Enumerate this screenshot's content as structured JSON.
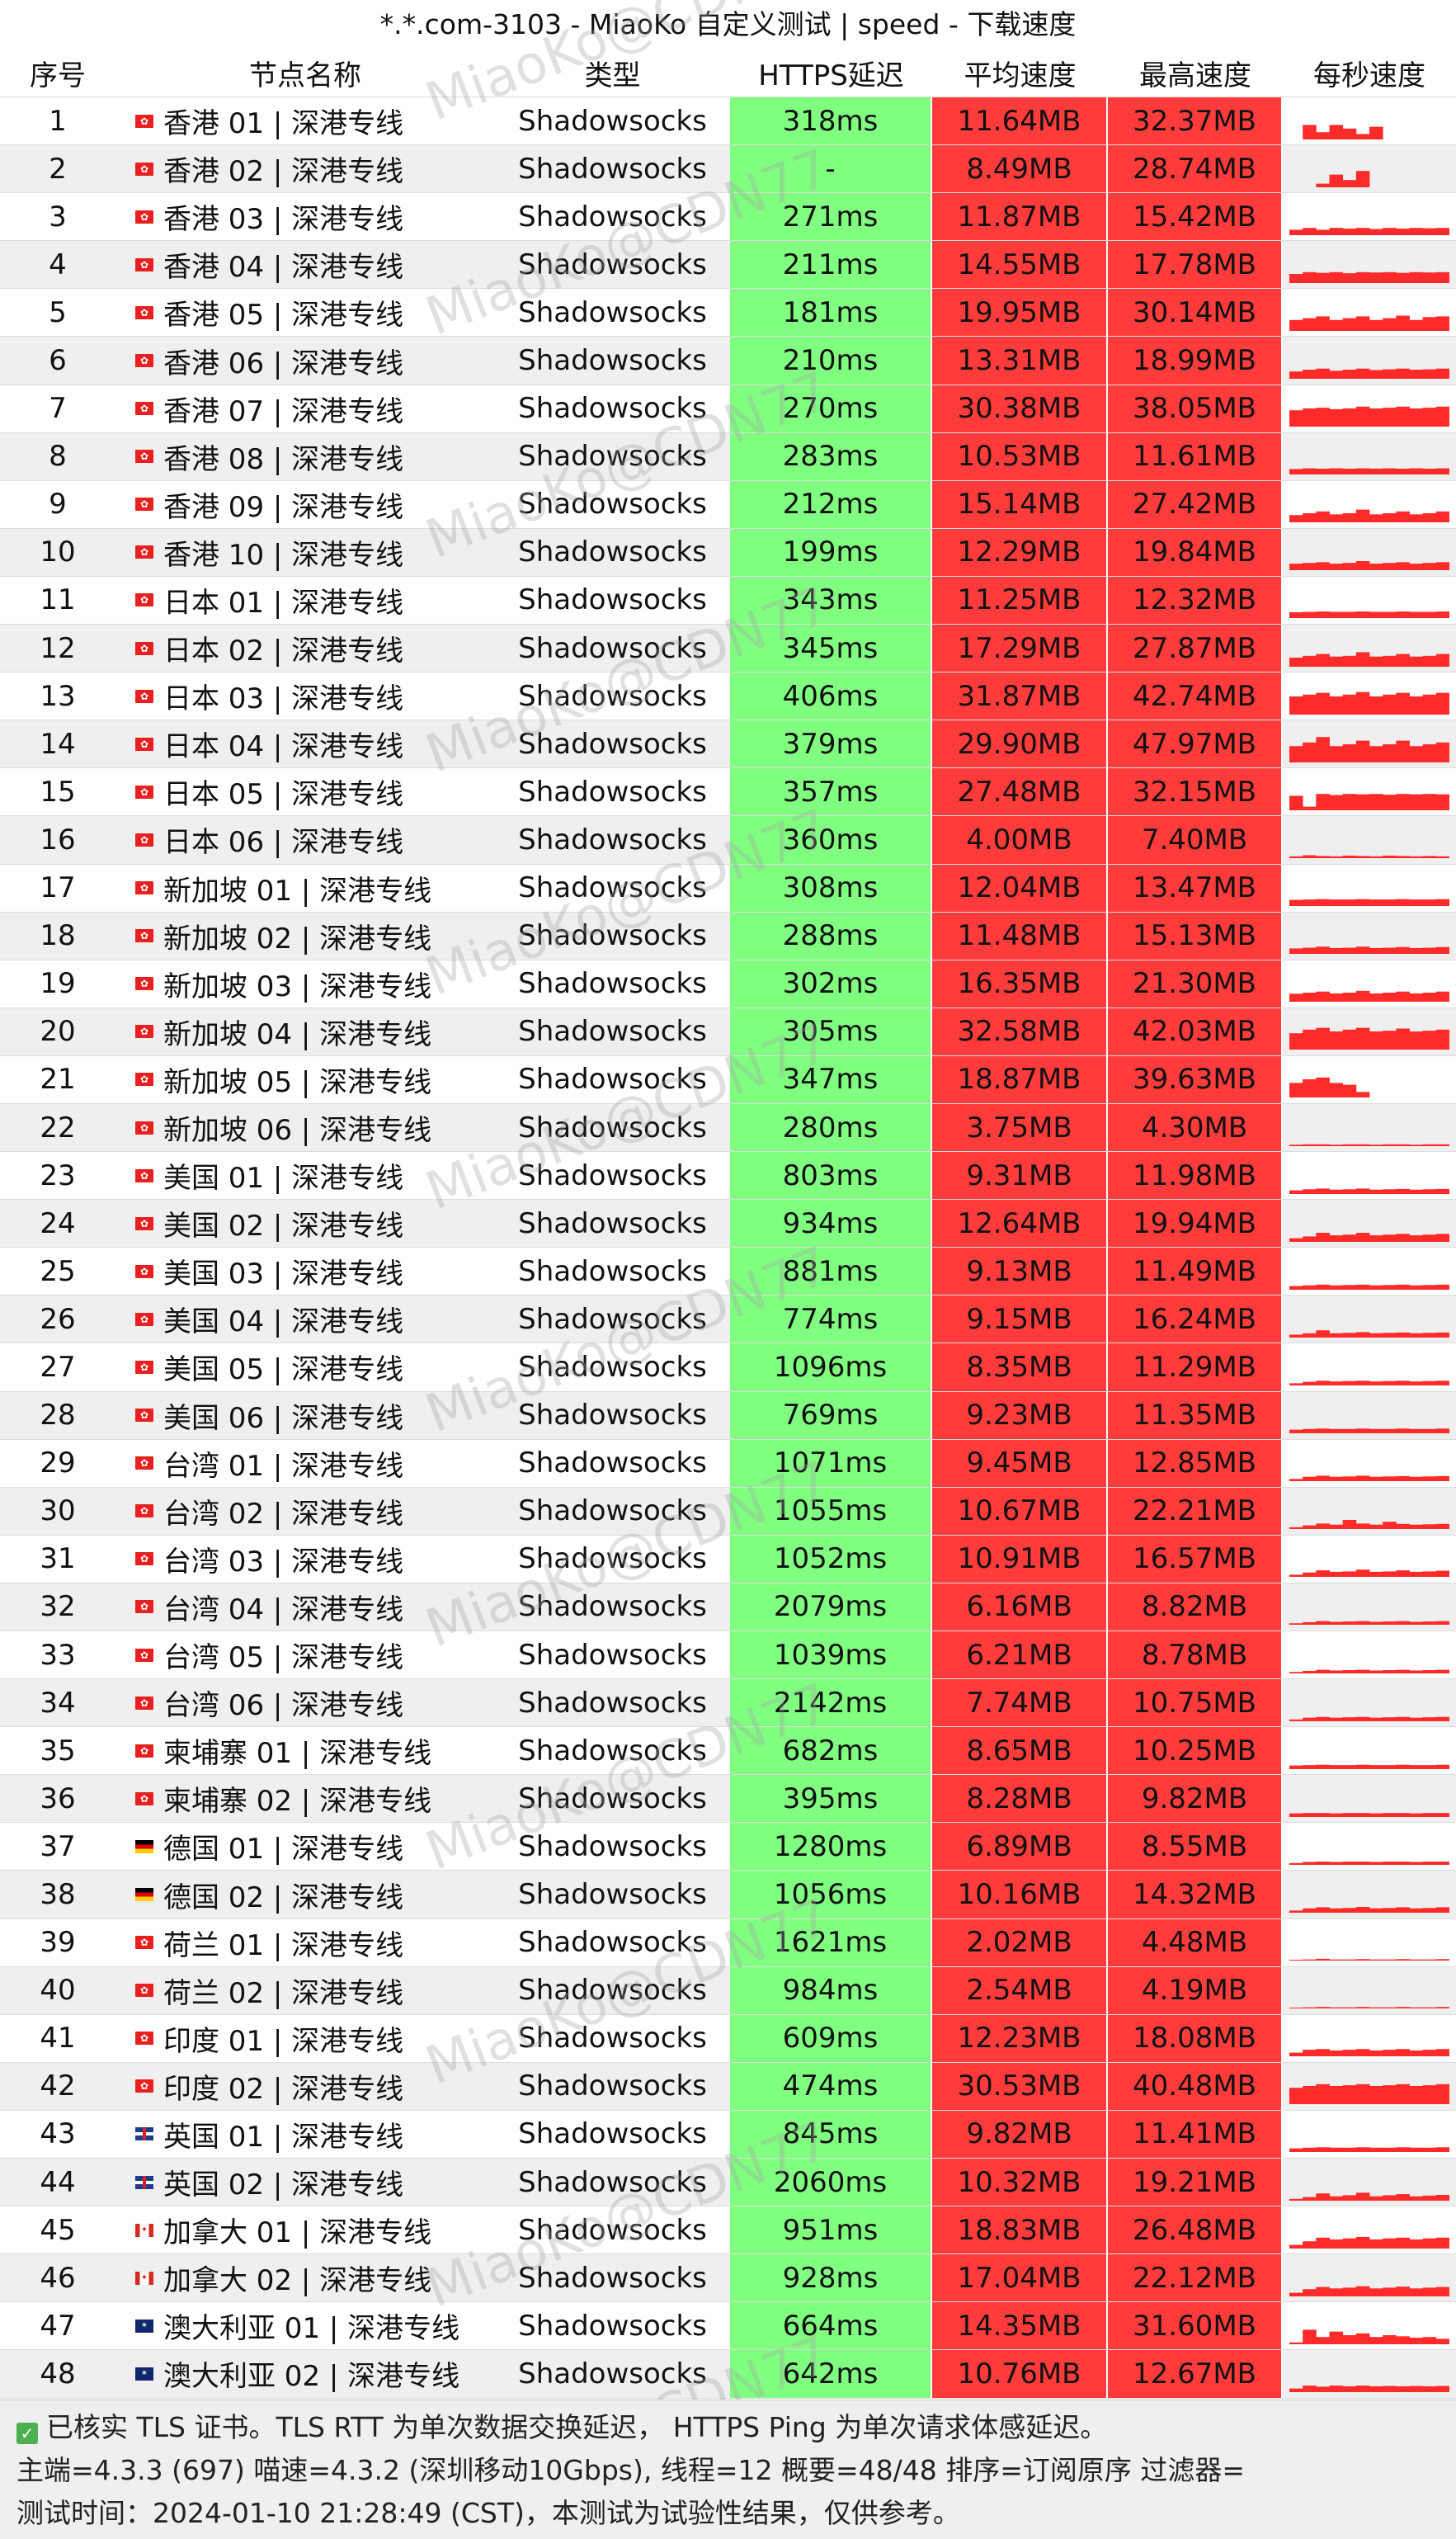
{
  "title": "*.*.com-3103 - MiaoKo 自定义测试 | speed - 下载速度",
  "columns": [
    "序号",
    "节点名称",
    "类型",
    "HTTPS延迟",
    "平均速度",
    "最高速度",
    "每秒速度"
  ],
  "watermark": "MiaoKo@CDN77",
  "colors": {
    "latency_bg": "#80ff80",
    "speed_bg": "#ff3b3b",
    "sparkline": "#ff2a2a",
    "alt_row": "#efefef"
  },
  "rows": [
    {
      "idx": "1",
      "flag": "hk-flag",
      "name": "香港 01 | 深港专线",
      "type": "Shadowsocks",
      "latency": "318ms",
      "avg": "11.64MB",
      "max": "32.37MB",
      "spark": [
        0.0,
        0.4,
        0.2,
        0.4,
        0.3,
        0.15,
        0.35,
        0,
        0,
        0,
        0,
        0
      ]
    },
    {
      "idx": "2",
      "flag": "hk-flag",
      "name": "香港 02 | 深港专线",
      "type": "Shadowsocks",
      "latency": "-",
      "avg": "8.49MB",
      "max": "28.74MB",
      "spark": [
        0,
        0,
        0.1,
        0.35,
        0.2,
        0.45,
        0,
        0,
        0,
        0,
        0,
        0
      ]
    },
    {
      "idx": "3",
      "flag": "hk-flag",
      "name": "香港 03 | 深港专线",
      "type": "Shadowsocks",
      "latency": "271ms",
      "avg": "11.87MB",
      "max": "15.42MB",
      "spark": [
        0.15,
        0.2,
        0.15,
        0.2,
        0.18,
        0.2,
        0.17,
        0.2,
        0.18,
        0.2,
        0.19,
        0.2
      ]
    },
    {
      "idx": "4",
      "flag": "hk-flag",
      "name": "香港 04 | 深港专线",
      "type": "Shadowsocks",
      "latency": "211ms",
      "avg": "14.55MB",
      "max": "17.78MB",
      "spark": [
        0.25,
        0.3,
        0.28,
        0.3,
        0.27,
        0.3,
        0.29,
        0.3,
        0.28,
        0.3,
        0.29,
        0.3
      ]
    },
    {
      "idx": "5",
      "flag": "hk-flag",
      "name": "香港 05 | 深港专线",
      "type": "Shadowsocks",
      "latency": "181ms",
      "avg": "19.95MB",
      "max": "30.14MB",
      "spark": [
        0.3,
        0.35,
        0.4,
        0.3,
        0.35,
        0.4,
        0.3,
        0.35,
        0.42,
        0.3,
        0.38,
        0.4
      ]
    },
    {
      "idx": "6",
      "flag": "hk-flag",
      "name": "香港 06 | 深港专线",
      "type": "Shadowsocks",
      "latency": "210ms",
      "avg": "13.31MB",
      "max": "18.99MB",
      "spark": [
        0.2,
        0.25,
        0.28,
        0.22,
        0.25,
        0.28,
        0.24,
        0.26,
        0.28,
        0.25,
        0.26,
        0.28
      ]
    },
    {
      "idx": "7",
      "flag": "hk-flag",
      "name": "香港 07 | 深港专线",
      "type": "Shadowsocks",
      "latency": "270ms",
      "avg": "30.38MB",
      "max": "38.05MB",
      "spark": [
        0.45,
        0.5,
        0.52,
        0.48,
        0.5,
        0.55,
        0.5,
        0.52,
        0.55,
        0.5,
        0.52,
        0.55
      ]
    },
    {
      "idx": "8",
      "flag": "hk-flag",
      "name": "香港 08 | 深港专线",
      "type": "Shadowsocks",
      "latency": "283ms",
      "avg": "10.53MB",
      "max": "11.61MB",
      "spark": [
        0.15,
        0.17,
        0.16,
        0.17,
        0.16,
        0.17,
        0.16,
        0.17,
        0.16,
        0.17,
        0.16,
        0.17
      ]
    },
    {
      "idx": "9",
      "flag": "hk-flag",
      "name": "香港 09 | 深港专线",
      "type": "Shadowsocks",
      "latency": "212ms",
      "avg": "15.14MB",
      "max": "27.42MB",
      "spark": [
        0.2,
        0.25,
        0.3,
        0.22,
        0.25,
        0.35,
        0.22,
        0.25,
        0.3,
        0.22,
        0.25,
        0.3
      ]
    },
    {
      "idx": "10",
      "flag": "hk-flag",
      "name": "香港 10 | 深港专线",
      "type": "Shadowsocks",
      "latency": "199ms",
      "avg": "12.29MB",
      "max": "19.84MB",
      "spark": [
        0.18,
        0.2,
        0.22,
        0.18,
        0.2,
        0.25,
        0.18,
        0.2,
        0.22,
        0.18,
        0.2,
        0.22
      ]
    },
    {
      "idx": "11",
      "flag": "hk-flag",
      "name": "日本 01 | 深港专线",
      "type": "Shadowsocks",
      "latency": "343ms",
      "avg": "11.25MB",
      "max": "12.32MB",
      "spark": [
        0.16,
        0.17,
        0.18,
        0.17,
        0.17,
        0.18,
        0.17,
        0.17,
        0.18,
        0.17,
        0.17,
        0.18
      ]
    },
    {
      "idx": "12",
      "flag": "hk-flag",
      "name": "日本 02 | 深港专线",
      "type": "Shadowsocks",
      "latency": "345ms",
      "avg": "17.29MB",
      "max": "27.87MB",
      "spark": [
        0.25,
        0.3,
        0.35,
        0.28,
        0.3,
        0.4,
        0.28,
        0.3,
        0.35,
        0.28,
        0.3,
        0.35
      ]
    },
    {
      "idx": "13",
      "flag": "hk-flag",
      "name": "日本 03 | 深港专线",
      "type": "Shadowsocks",
      "latency": "406ms",
      "avg": "31.87MB",
      "max": "42.74MB",
      "spark": [
        0.5,
        0.55,
        0.6,
        0.5,
        0.55,
        0.62,
        0.5,
        0.55,
        0.6,
        0.5,
        0.55,
        0.6
      ]
    },
    {
      "idx": "14",
      "flag": "hk-flag",
      "name": "日本 04 | 深港专线",
      "type": "Shadowsocks",
      "latency": "379ms",
      "avg": "29.90MB",
      "max": "47.97MB",
      "spark": [
        0.45,
        0.55,
        0.7,
        0.45,
        0.5,
        0.6,
        0.45,
        0.5,
        0.6,
        0.45,
        0.5,
        0.55
      ]
    },
    {
      "idx": "15",
      "flag": "hk-flag",
      "name": "日本 05 | 深港专线",
      "type": "Shadowsocks",
      "latency": "357ms",
      "avg": "27.48MB",
      "max": "32.15MB",
      "spark": [
        0.4,
        0.1,
        0.45,
        0.42,
        0.45,
        0.44,
        0.45,
        0.43,
        0.45,
        0.44,
        0.45,
        0.44
      ]
    },
    {
      "idx": "16",
      "flag": "hk-flag",
      "name": "日本 06 | 深港专线",
      "type": "Shadowsocks",
      "latency": "360ms",
      "avg": "4.00MB",
      "max": "7.40MB",
      "spark": [
        0.05,
        0.08,
        0.06,
        0.05,
        0.07,
        0.06,
        0.05,
        0.07,
        0.06,
        0.05,
        0.06,
        0.05
      ]
    },
    {
      "idx": "17",
      "flag": "hk-flag",
      "name": "新加坡 01 | 深港专线",
      "type": "Shadowsocks",
      "latency": "308ms",
      "avg": "12.04MB",
      "max": "13.47MB",
      "spark": [
        0.17,
        0.18,
        0.19,
        0.18,
        0.18,
        0.19,
        0.18,
        0.18,
        0.19,
        0.18,
        0.18,
        0.19
      ]
    },
    {
      "idx": "18",
      "flag": "hk-flag",
      "name": "新加坡 02 | 深港专线",
      "type": "Shadowsocks",
      "latency": "288ms",
      "avg": "11.48MB",
      "max": "15.13MB",
      "spark": [
        0.15,
        0.17,
        0.2,
        0.16,
        0.17,
        0.2,
        0.16,
        0.17,
        0.19,
        0.16,
        0.17,
        0.19
      ]
    },
    {
      "idx": "19",
      "flag": "hk-flag",
      "name": "新加坡 03 | 深港专线",
      "type": "Shadowsocks",
      "latency": "302ms",
      "avg": "16.35MB",
      "max": "21.30MB",
      "spark": [
        0.22,
        0.25,
        0.28,
        0.23,
        0.25,
        0.3,
        0.23,
        0.25,
        0.28,
        0.23,
        0.25,
        0.28
      ]
    },
    {
      "idx": "20",
      "flag": "hk-flag",
      "name": "新加坡 04 | 深港专线",
      "type": "Shadowsocks",
      "latency": "305ms",
      "avg": "32.58MB",
      "max": "42.03MB",
      "spark": [
        0.45,
        0.55,
        0.6,
        0.5,
        0.55,
        0.6,
        0.5,
        0.52,
        0.58,
        0.5,
        0.52,
        0.55
      ]
    },
    {
      "idx": "21",
      "flag": "hk-flag",
      "name": "新加坡 05 | 深港专线",
      "type": "Shadowsocks",
      "latency": "347ms",
      "avg": "18.87MB",
      "max": "39.63MB",
      "spark": [
        0.4,
        0.5,
        0.55,
        0.4,
        0.35,
        0.15,
        0,
        0,
        0,
        0,
        0,
        0
      ]
    },
    {
      "idx": "22",
      "flag": "hk-flag",
      "name": "新加坡 06 | 深港专线",
      "type": "Shadowsocks",
      "latency": "280ms",
      "avg": "3.75MB",
      "max": "4.30MB",
      "spark": [
        0.04,
        0.05,
        0.05,
        0.04,
        0.05,
        0.05,
        0.04,
        0.05,
        0.05,
        0.04,
        0.05,
        0.05
      ]
    },
    {
      "idx": "23",
      "flag": "hk-flag",
      "name": "美国 01 | 深港专线",
      "type": "Shadowsocks",
      "latency": "803ms",
      "avg": "9.31MB",
      "max": "11.98MB",
      "spark": [
        0.1,
        0.13,
        0.15,
        0.12,
        0.13,
        0.15,
        0.12,
        0.13,
        0.14,
        0.12,
        0.13,
        0.14
      ]
    },
    {
      "idx": "24",
      "flag": "hk-flag",
      "name": "美国 02 | 深港专线",
      "type": "Shadowsocks",
      "latency": "934ms",
      "avg": "12.64MB",
      "max": "19.94MB",
      "spark": [
        0.1,
        0.15,
        0.25,
        0.18,
        0.2,
        0.25,
        0.18,
        0.2,
        0.22,
        0.18,
        0.2,
        0.22
      ]
    },
    {
      "idx": "25",
      "flag": "hk-flag",
      "name": "美国 03 | 深港专线",
      "type": "Shadowsocks",
      "latency": "881ms",
      "avg": "9.13MB",
      "max": "11.49MB",
      "spark": [
        0.1,
        0.12,
        0.14,
        0.12,
        0.13,
        0.14,
        0.12,
        0.13,
        0.14,
        0.12,
        0.13,
        0.14
      ]
    },
    {
      "idx": "26",
      "flag": "hk-flag",
      "name": "美国 04 | 深港专线",
      "type": "Shadowsocks",
      "latency": "774ms",
      "avg": "9.15MB",
      "max": "16.24MB",
      "spark": [
        0.08,
        0.12,
        0.2,
        0.12,
        0.13,
        0.15,
        0.12,
        0.13,
        0.14,
        0.12,
        0.13,
        0.14
      ]
    },
    {
      "idx": "27",
      "flag": "hk-flag",
      "name": "美国 05 | 深港专线",
      "type": "Shadowsocks",
      "latency": "1096ms",
      "avg": "8.35MB",
      "max": "11.29MB",
      "spark": [
        0.06,
        0.1,
        0.13,
        0.11,
        0.12,
        0.13,
        0.11,
        0.12,
        0.13,
        0.11,
        0.12,
        0.13
      ]
    },
    {
      "idx": "28",
      "flag": "hk-flag",
      "name": "美国 06 | 深港专线",
      "type": "Shadowsocks",
      "latency": "769ms",
      "avg": "9.23MB",
      "max": "11.35MB",
      "spark": [
        0.1,
        0.12,
        0.13,
        0.12,
        0.12,
        0.13,
        0.12,
        0.12,
        0.13,
        0.12,
        0.12,
        0.13
      ]
    },
    {
      "idx": "29",
      "flag": "hk-flag",
      "name": "台湾 01 | 深港专线",
      "type": "Shadowsocks",
      "latency": "1071ms",
      "avg": "9.45MB",
      "max": "12.85MB",
      "spark": [
        0.06,
        0.12,
        0.15,
        0.12,
        0.13,
        0.15,
        0.12,
        0.13,
        0.14,
        0.12,
        0.13,
        0.14
      ]
    },
    {
      "idx": "30",
      "flag": "hk-flag",
      "name": "台湾 02 | 深港专线",
      "type": "Shadowsocks",
      "latency": "1055ms",
      "avg": "10.67MB",
      "max": "22.21MB",
      "spark": [
        0.05,
        0.1,
        0.15,
        0.12,
        0.25,
        0.15,
        0.12,
        0.2,
        0.14,
        0.12,
        0.13,
        0.14
      ]
    },
    {
      "idx": "31",
      "flag": "hk-flag",
      "name": "台湾 03 | 深港专线",
      "type": "Shadowsocks",
      "latency": "1052ms",
      "avg": "10.91MB",
      "max": "16.57MB",
      "spark": [
        0.06,
        0.12,
        0.18,
        0.14,
        0.15,
        0.2,
        0.14,
        0.15,
        0.18,
        0.14,
        0.15,
        0.17
      ]
    },
    {
      "idx": "32",
      "flag": "hk-flag",
      "name": "台湾 04 | 深港专线",
      "type": "Shadowsocks",
      "latency": "2079ms",
      "avg": "6.16MB",
      "max": "8.82MB",
      "spark": [
        0.04,
        0.07,
        0.1,
        0.08,
        0.09,
        0.1,
        0.08,
        0.09,
        0.1,
        0.08,
        0.09,
        0.1
      ]
    },
    {
      "idx": "33",
      "flag": "hk-flag",
      "name": "台湾 05 | 深港专线",
      "type": "Shadowsocks",
      "latency": "1039ms",
      "avg": "6.21MB",
      "max": "8.78MB",
      "spark": [
        0.04,
        0.07,
        0.1,
        0.08,
        0.09,
        0.1,
        0.08,
        0.09,
        0.1,
        0.08,
        0.09,
        0.1
      ]
    },
    {
      "idx": "34",
      "flag": "hk-flag",
      "name": "台湾 06 | 深港专线",
      "type": "Shadowsocks",
      "latency": "2142ms",
      "avg": "7.74MB",
      "max": "10.75MB",
      "spark": [
        0.05,
        0.1,
        0.12,
        0.1,
        0.11,
        0.12,
        0.1,
        0.11,
        0.12,
        0.1,
        0.11,
        0.12
      ]
    },
    {
      "idx": "35",
      "flag": "hk-flag",
      "name": "柬埔寨 01 | 深港专线",
      "type": "Shadowsocks",
      "latency": "682ms",
      "avg": "8.65MB",
      "max": "10.25MB",
      "spark": [
        0.1,
        0.11,
        0.12,
        0.11,
        0.11,
        0.12,
        0.11,
        0.11,
        0.12,
        0.11,
        0.11,
        0.12
      ]
    },
    {
      "idx": "36",
      "flag": "hk-flag",
      "name": "柬埔寨 02 | 深港专线",
      "type": "Shadowsocks",
      "latency": "395ms",
      "avg": "8.28MB",
      "max": "9.82MB",
      "spark": [
        0.1,
        0.11,
        0.11,
        0.1,
        0.11,
        0.11,
        0.1,
        0.11,
        0.11,
        0.1,
        0.11,
        0.11
      ]
    },
    {
      "idx": "37",
      "flag": "de-flag",
      "name": "德国 01 | 深港专线",
      "type": "Shadowsocks",
      "latency": "1280ms",
      "avg": "6.89MB",
      "max": "8.55MB",
      "spark": [
        0.05,
        0.08,
        0.09,
        0.08,
        0.09,
        0.09,
        0.08,
        0.09,
        0.09,
        0.08,
        0.09,
        0.09
      ]
    },
    {
      "idx": "38",
      "flag": "de-flag",
      "name": "德国 02 | 深港专线",
      "type": "Shadowsocks",
      "latency": "1056ms",
      "avg": "10.16MB",
      "max": "14.32MB",
      "spark": [
        0.06,
        0.12,
        0.15,
        0.12,
        0.13,
        0.16,
        0.12,
        0.13,
        0.15,
        0.12,
        0.13,
        0.15
      ]
    },
    {
      "idx": "39",
      "flag": "hk-flag",
      "name": "荷兰 01 | 深港专线",
      "type": "Shadowsocks",
      "latency": "1621ms",
      "avg": "2.02MB",
      "max": "4.48MB",
      "spark": [
        0.02,
        0.03,
        0.05,
        0.03,
        0.03,
        0.04,
        0.03,
        0.03,
        0.04,
        0.03,
        0.03,
        0.04
      ]
    },
    {
      "idx": "40",
      "flag": "hk-flag",
      "name": "荷兰 02 | 深港专线",
      "type": "Shadowsocks",
      "latency": "984ms",
      "avg": "2.54MB",
      "max": "4.19MB",
      "spark": [
        0.02,
        0.03,
        0.04,
        0.03,
        0.03,
        0.04,
        0.03,
        0.03,
        0.04,
        0.03,
        0.03,
        0.04
      ]
    },
    {
      "idx": "41",
      "flag": "hk-flag",
      "name": "印度 01 | 深港专线",
      "type": "Shadowsocks",
      "latency": "609ms",
      "avg": "12.23MB",
      "max": "18.08MB",
      "spark": [
        0.1,
        0.18,
        0.2,
        0.16,
        0.18,
        0.2,
        0.16,
        0.18,
        0.2,
        0.16,
        0.18,
        0.2
      ]
    },
    {
      "idx": "42",
      "flag": "hk-flag",
      "name": "印度 02 | 深港专线",
      "type": "Shadowsocks",
      "latency": "474ms",
      "avg": "30.53MB",
      "max": "40.48MB",
      "spark": [
        0.45,
        0.5,
        0.55,
        0.5,
        0.52,
        0.55,
        0.5,
        0.52,
        0.55,
        0.5,
        0.52,
        0.55
      ]
    },
    {
      "idx": "43",
      "flag": "uk-flag",
      "name": "英国 01 | 深港专线",
      "type": "Shadowsocks",
      "latency": "845ms",
      "avg": "9.82MB",
      "max": "11.41MB",
      "spark": [
        0.1,
        0.12,
        0.13,
        0.12,
        0.12,
        0.13,
        0.12,
        0.12,
        0.13,
        0.12,
        0.12,
        0.13
      ]
    },
    {
      "idx": "44",
      "flag": "uk-flag",
      "name": "英国 02 | 深港专线",
      "type": "Shadowsocks",
      "latency": "2060ms",
      "avg": "10.32MB",
      "max": "19.21MB",
      "spark": [
        0.05,
        0.1,
        0.2,
        0.12,
        0.15,
        0.22,
        0.12,
        0.15,
        0.18,
        0.12,
        0.14,
        0.16
      ]
    },
    {
      "idx": "45",
      "flag": "ca-flag",
      "name": "加拿大 01 | 深港专线",
      "type": "Shadowsocks",
      "latency": "951ms",
      "avg": "18.83MB",
      "max": "26.48MB",
      "spark": [
        0.1,
        0.2,
        0.3,
        0.25,
        0.28,
        0.32,
        0.25,
        0.28,
        0.3,
        0.25,
        0.28,
        0.3
      ]
    },
    {
      "idx": "46",
      "flag": "ca-flag",
      "name": "加拿大 02 | 深港专线",
      "type": "Shadowsocks",
      "latency": "928ms",
      "avg": "17.04MB",
      "max": "22.12MB",
      "spark": [
        0.1,
        0.2,
        0.26,
        0.22,
        0.24,
        0.28,
        0.22,
        0.24,
        0.27,
        0.22,
        0.24,
        0.26
      ]
    },
    {
      "idx": "47",
      "flag": "au-flag",
      "name": "澳大利亚 01 | 深港专线",
      "type": "Shadowsocks",
      "latency": "664ms",
      "avg": "14.35MB",
      "max": "31.60MB",
      "spark": [
        0.05,
        0.4,
        0.2,
        0.35,
        0.25,
        0.3,
        0.2,
        0.25,
        0.22,
        0.18,
        0.2,
        0.15
      ]
    },
    {
      "idx": "48",
      "flag": "au-flag",
      "name": "澳大利亚 02 | 深港专线",
      "type": "Shadowsocks",
      "latency": "642ms",
      "avg": "10.76MB",
      "max": "12.67MB",
      "spark": [
        0.1,
        0.18,
        0.15,
        0.18,
        0.16,
        0.18,
        0.16,
        0.17,
        0.16,
        0.17,
        0.16,
        0.17
      ]
    }
  ],
  "footer": {
    "tls_note": "已核实 TLS 证书。TLS RTT 为单次数据交换延迟， HTTPS Ping 为单次请求体感延迟。",
    "version_line": "主端=4.3.3 (697) 喵速=4.3.2 (深圳移动10Gbps), 线程=12 概要=48/48 排序=订阅原序 过滤器=",
    "time_line": "测试时间：2024-01-10 21:28:49 (CST)，本测试为试验性结果，仅供参考。"
  }
}
